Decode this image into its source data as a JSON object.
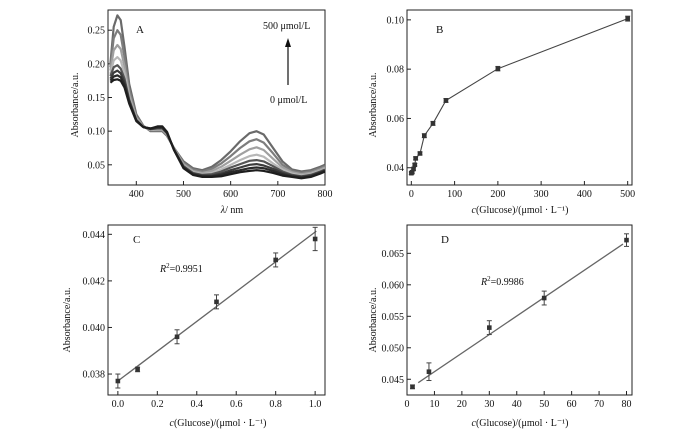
{
  "chart_data": [
    {
      "panel": "A",
      "type": "line",
      "xlabel_italic": "λ",
      "xlabel_rest": "/ nm",
      "ylabel": "Absorbance/a.u.",
      "xlim": [
        340,
        800
      ],
      "ylim": [
        0.02,
        0.28
      ],
      "xticks": [
        400,
        500,
        600,
        700,
        800
      ],
      "yticks": [
        0.05,
        0.1,
        0.15,
        0.2,
        0.25
      ],
      "ytick_labels": [
        "0.05",
        "0.10",
        "0.15",
        "0.20",
        "0.25"
      ],
      "grid": false,
      "annotations": {
        "top": "500 μmol/L",
        "bottom": "0 μmol/L"
      },
      "x": [
        345,
        352,
        360,
        367,
        375,
        385,
        400,
        415,
        430,
        445,
        455,
        465,
        480,
        500,
        520,
        540,
        560,
        580,
        600,
        620,
        640,
        655,
        670,
        690,
        710,
        730,
        750,
        770,
        790,
        800
      ],
      "series": [
        {
          "color": "#6a6a6a",
          "values": [
            0.2,
            0.255,
            0.272,
            0.265,
            0.225,
            0.17,
            0.125,
            0.108,
            0.1,
            0.1,
            0.1,
            0.093,
            0.075,
            0.055,
            0.045,
            0.042,
            0.047,
            0.057,
            0.07,
            0.085,
            0.097,
            0.1,
            0.095,
            0.075,
            0.055,
            0.043,
            0.04,
            0.042,
            0.047,
            0.05
          ]
        },
        {
          "color": "#7d7d7d",
          "values": [
            0.195,
            0.238,
            0.25,
            0.243,
            0.21,
            0.162,
            0.122,
            0.107,
            0.101,
            0.101,
            0.101,
            0.094,
            0.075,
            0.053,
            0.043,
            0.04,
            0.044,
            0.052,
            0.063,
            0.075,
            0.085,
            0.088,
            0.083,
            0.067,
            0.05,
            0.041,
            0.038,
            0.04,
            0.045,
            0.048
          ]
        },
        {
          "color": "#a0a0a0",
          "values": [
            0.19,
            0.22,
            0.228,
            0.222,
            0.196,
            0.155,
            0.12,
            0.107,
            0.102,
            0.102,
            0.102,
            0.095,
            0.074,
            0.051,
            0.041,
            0.038,
            0.041,
            0.047,
            0.056,
            0.065,
            0.073,
            0.076,
            0.072,
            0.059,
            0.046,
            0.039,
            0.036,
            0.038,
            0.043,
            0.046
          ]
        },
        {
          "color": "#b8b8b8",
          "values": [
            0.185,
            0.205,
            0.21,
            0.205,
            0.186,
            0.15,
            0.118,
            0.106,
            0.102,
            0.103,
            0.103,
            0.096,
            0.074,
            0.049,
            0.039,
            0.036,
            0.038,
            0.043,
            0.05,
            0.057,
            0.063,
            0.065,
            0.062,
            0.052,
            0.043,
            0.037,
            0.034,
            0.036,
            0.041,
            0.044
          ]
        },
        {
          "color": "#555555",
          "values": [
            0.182,
            0.195,
            0.198,
            0.193,
            0.178,
            0.147,
            0.117,
            0.106,
            0.103,
            0.104,
            0.104,
            0.097,
            0.073,
            0.048,
            0.038,
            0.035,
            0.036,
            0.04,
            0.046,
            0.051,
            0.056,
            0.057,
            0.055,
            0.048,
            0.04,
            0.035,
            0.033,
            0.035,
            0.04,
            0.043
          ]
        },
        {
          "color": "#3c3c3c",
          "values": [
            0.178,
            0.187,
            0.19,
            0.186,
            0.173,
            0.145,
            0.116,
            0.106,
            0.103,
            0.105,
            0.105,
            0.097,
            0.073,
            0.047,
            0.037,
            0.034,
            0.034,
            0.037,
            0.042,
            0.046,
            0.05,
            0.051,
            0.049,
            0.044,
            0.038,
            0.034,
            0.032,
            0.034,
            0.039,
            0.042
          ]
        },
        {
          "color": "#2a2a2a",
          "values": [
            0.175,
            0.181,
            0.183,
            0.18,
            0.169,
            0.143,
            0.116,
            0.106,
            0.104,
            0.106,
            0.106,
            0.098,
            0.072,
            0.046,
            0.036,
            0.033,
            0.033,
            0.035,
            0.039,
            0.042,
            0.045,
            0.046,
            0.045,
            0.041,
            0.036,
            0.033,
            0.031,
            0.033,
            0.038,
            0.041
          ]
        },
        {
          "color": "#1e1e1e",
          "values": [
            0.172,
            0.176,
            0.177,
            0.175,
            0.165,
            0.141,
            0.115,
            0.106,
            0.104,
            0.107,
            0.107,
            0.099,
            0.072,
            0.045,
            0.035,
            0.032,
            0.032,
            0.033,
            0.036,
            0.039,
            0.041,
            0.042,
            0.041,
            0.038,
            0.034,
            0.032,
            0.03,
            0.032,
            0.037,
            0.04
          ]
        }
      ]
    },
    {
      "panel": "B",
      "type": "line",
      "xlabel_italic": "c",
      "xlabel_rest": "(Glucose)/(μmol · L⁻¹)",
      "ylabel": "Absorbance/a.u.",
      "xlim": [
        -10,
        510
      ],
      "ylim": [
        0.033,
        0.104
      ],
      "xticks": [
        0,
        100,
        200,
        300,
        400,
        500
      ],
      "yticks": [
        0.04,
        0.06,
        0.08,
        0.1
      ],
      "ytick_labels": [
        "0.04",
        "0.06",
        "0.08",
        "0.10"
      ],
      "grid": false,
      "x": [
        0,
        2,
        5,
        8,
        10,
        20,
        30,
        50,
        80,
        200,
        500
      ],
      "y": [
        0.0378,
        0.0382,
        0.0395,
        0.0412,
        0.0438,
        0.0458,
        0.053,
        0.058,
        0.0673,
        0.0802,
        0.1005
      ],
      "err": [
        0.0005,
        0.0005,
        0.0005,
        0.0005,
        0.0006,
        0.0006,
        0.0008,
        0.0008,
        0.0008,
        0.0009,
        0.001
      ]
    },
    {
      "panel": "C",
      "type": "scatter",
      "xlabel_italic": "c",
      "xlabel_rest": "(Glucose)/(μmol · L⁻¹)",
      "ylabel": "Absorbance/a.u.",
      "xlim": [
        -0.05,
        1.05
      ],
      "ylim": [
        0.0371,
        0.0444
      ],
      "xticks": [
        0.0,
        0.2,
        0.4,
        0.6,
        0.8,
        1.0
      ],
      "xtick_labels": [
        "0.0",
        "0.2",
        "0.4",
        "0.6",
        "0.8",
        "1.0"
      ],
      "yticks": [
        0.038,
        0.04,
        0.042,
        0.044
      ],
      "ytick_labels": [
        "0.038",
        "0.040",
        "0.042",
        "0.044"
      ],
      "grid": false,
      "annotation": "=0.9951",
      "x": [
        0.0,
        0.1,
        0.3,
        0.5,
        0.8,
        1.0
      ],
      "y": [
        0.0377,
        0.0382,
        0.0396,
        0.0411,
        0.0429,
        0.0438
      ],
      "err": [
        0.0003,
        0.0001,
        0.0003,
        0.0003,
        0.0003,
        0.0005
      ],
      "fit": {
        "slope": 0.0064,
        "intercept": 0.0377
      }
    },
    {
      "panel": "D",
      "type": "scatter",
      "xlabel_italic": "c",
      "xlabel_rest": "(Glucose)/(μmol · L⁻¹)",
      "ylabel": "Absorbance/a.u.",
      "xlim": [
        0,
        82
      ],
      "ylim": [
        0.0425,
        0.0695
      ],
      "xticks": [
        0,
        10,
        20,
        30,
        40,
        50,
        60,
        70,
        80
      ],
      "yticks": [
        0.045,
        0.05,
        0.055,
        0.06,
        0.065
      ],
      "ytick_labels": [
        "0.045",
        "0.050",
        "0.055",
        "0.060",
        "0.065"
      ],
      "grid": false,
      "annotation": "=0.9986",
      "x": [
        2,
        8,
        30,
        50,
        80
      ],
      "y": [
        0.0438,
        0.0462,
        0.0532,
        0.0579,
        0.0671
      ],
      "err": [
        0.0003,
        0.0014,
        0.0011,
        0.0011,
        0.001
      ],
      "fit": {
        "slope": 0.000295,
        "intercept": 0.04325
      }
    }
  ]
}
